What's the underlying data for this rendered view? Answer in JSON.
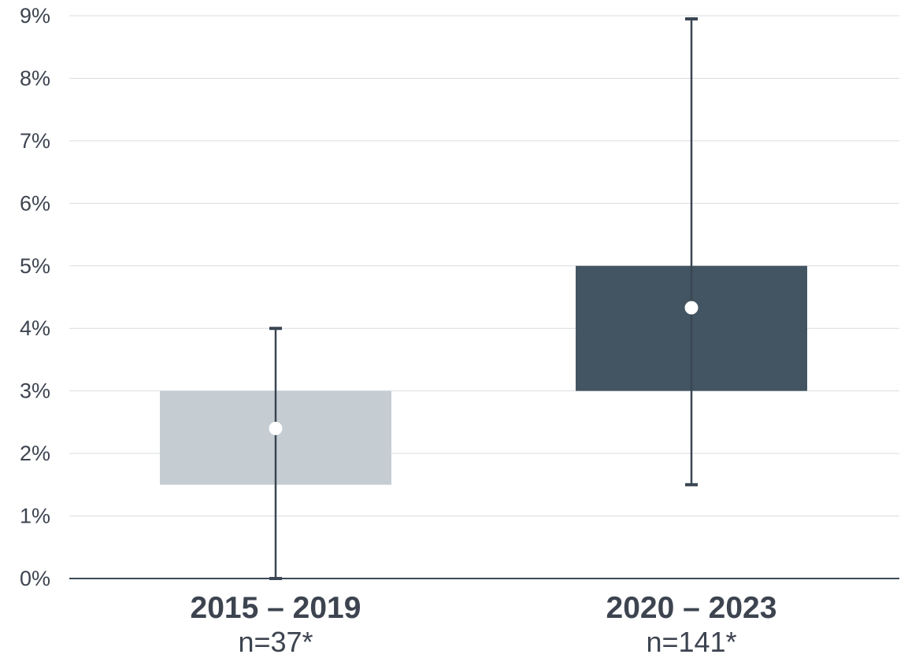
{
  "chart_data": {
    "type": "box",
    "title": "",
    "xlabel": "",
    "ylabel": "",
    "ylim": [
      0,
      9
    ],
    "y_tick_labels": [
      "0%",
      "1%",
      "2%",
      "3%",
      "4%",
      "5%",
      "6%",
      "7%",
      "8%",
      "9%"
    ],
    "grid": true,
    "legend": "none",
    "categories": [
      {
        "label": "2015 – 2019",
        "sublabel": "n=37*",
        "box_low": 1.5,
        "box_high": 3.0,
        "whisker_low": 0.0,
        "whisker_high": 4.0,
        "marker": 2.4,
        "color": "#c5cdd2"
      },
      {
        "label": "2020 – 2023",
        "sublabel": "n=141*",
        "box_low": 3.0,
        "box_high": 5.0,
        "whisker_low": 1.5,
        "whisker_high": 8.95,
        "marker": 4.33,
        "color": "#435562"
      }
    ]
  }
}
